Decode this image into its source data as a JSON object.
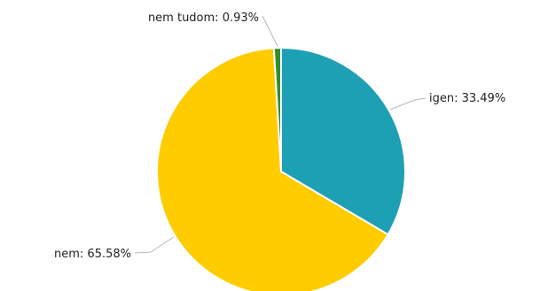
{
  "chart_data": {
    "type": "pie",
    "title": "",
    "slices": [
      {
        "label": "igen",
        "value": 33.49,
        "display": "igen: 33.49%",
        "color": "#1ea0b4"
      },
      {
        "label": "nem",
        "value": 65.58,
        "display": "nem: 65.58%",
        "color": "#ffcc00"
      },
      {
        "label": "nem tudom",
        "value": 0.93,
        "display": "nem tudom: 0.93%",
        "color": "#2f8f2f"
      }
    ],
    "start_angle_deg": 0,
    "direction": "clockwise",
    "legend": "none",
    "labels": "outside-with-leaders"
  }
}
